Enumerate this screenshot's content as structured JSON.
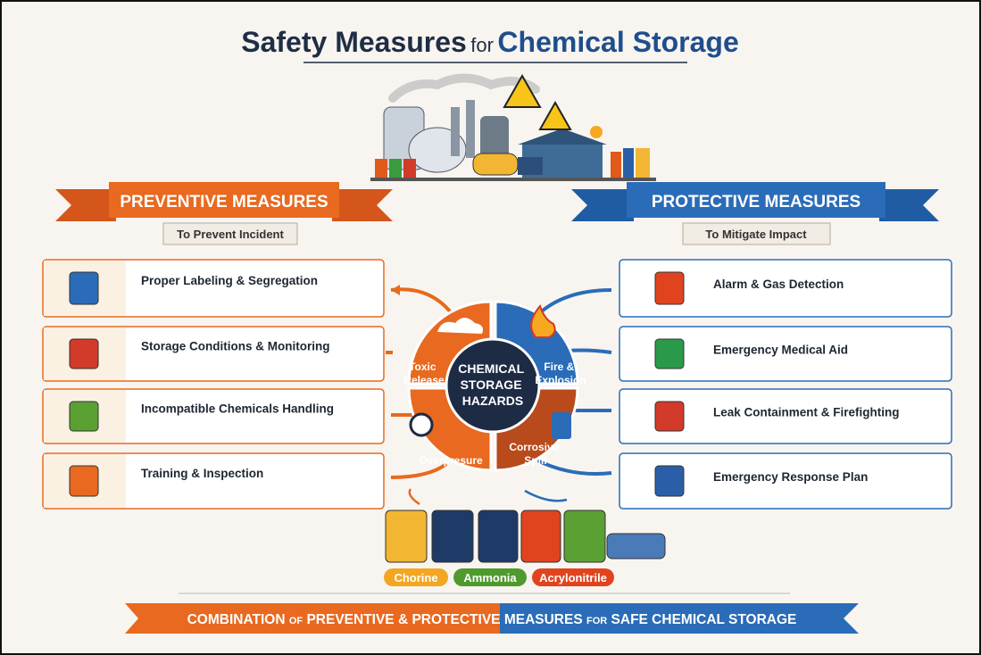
{
  "header": {
    "title": [
      "Safety Measures",
      "for",
      "Chemical Storage"
    ]
  },
  "preventive": {
    "title": "PREVENTIVE MEASURES",
    "subtitle": "To Prevent Incident",
    "items": [
      "Proper Labeling & Segregation",
      "Storage Conditions & Monitoring",
      "Incompatible Chemicals Handling",
      "Training & Inspection"
    ]
  },
  "protective": {
    "title": "PROTECTIVE MEASURES",
    "subtitle": "To Mitigate Impact",
    "items": [
      "Alarm & Gas Detection",
      "Emergency Medical Aid",
      "Leak Containment & Firefighting",
      "Emergency Response Plan"
    ]
  },
  "hazards": {
    "center": [
      "CHEMICAL",
      "STORAGE",
      "HAZARDS"
    ],
    "segments": [
      [
        "Toxic",
        "Release"
      ],
      [
        "Fire &",
        "Explosion"
      ],
      [
        "Overpresure"
      ],
      [
        "Corrosive",
        "Spill"
      ]
    ]
  },
  "chemicals": [
    "Chorine",
    "Ammonia",
    "Acrylonitrile"
  ],
  "footer": [
    "COMBINATION",
    "OF",
    "PREVENTIVE & PROTECTIVE",
    "MEASURES",
    "FOR",
    "SAFE CHEMICAL STORAGE"
  ]
}
